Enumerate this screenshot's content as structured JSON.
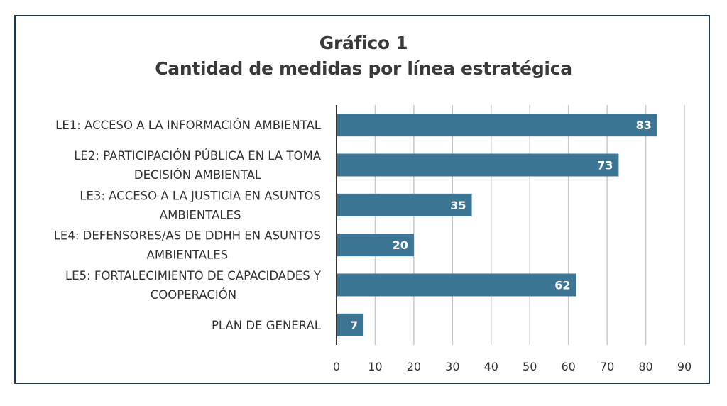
{
  "chart_data": {
    "type": "bar",
    "orientation": "horizontal",
    "title": "Gráfico 1",
    "subtitle": "Cantidad de medidas por línea estratégica",
    "categories": [
      [
        "LE1: ACCESO A LA INFORMACIÓN AMBIENTAL"
      ],
      [
        "LE2: PARTICIPACIÓN PÚBLICA EN LA TOMA",
        "DECISIÓN AMBIENTAL"
      ],
      [
        "LE3: ACCESO A LA JUSTICIA EN ASUNTOS",
        "AMBIENTALES"
      ],
      [
        "LE4: DEFENSORES/AS DE DDHH EN ASUNTOS",
        "AMBIENTALES"
      ],
      [
        "LE5: FORTALECIMIENTO DE CAPACIDADES Y",
        "COOPERACIÓN"
      ],
      [
        "PLAN DE GENERAL"
      ]
    ],
    "values": [
      83,
      73,
      35,
      20,
      62,
      7
    ],
    "xlim": [
      0,
      90
    ],
    "xticks": [
      0,
      10,
      20,
      30,
      40,
      50,
      60,
      70,
      80,
      90
    ],
    "xlabel": "",
    "ylabel": "",
    "grid": "vertical",
    "legend": "none",
    "bar_color": "#3c7593",
    "data_labels": true
  }
}
